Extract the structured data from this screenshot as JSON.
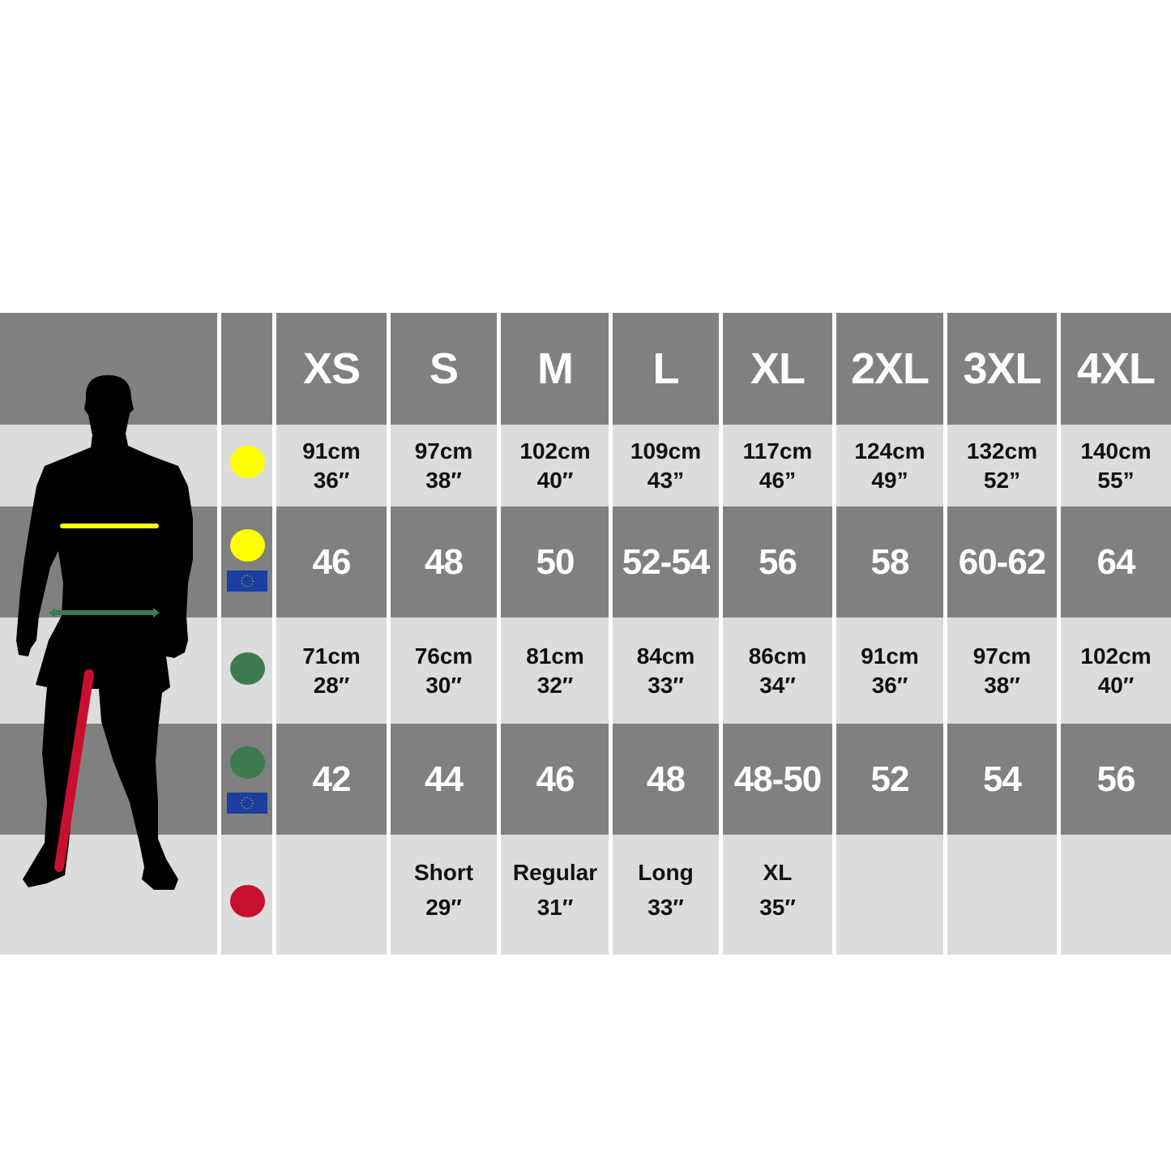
{
  "colors": {
    "chest": "#ffff00",
    "waist": "#3d7a50",
    "inseam": "#c8102e",
    "eu_flag": "#1a3fa0",
    "dark_row": "#808080",
    "light_row": "#dcdcdc"
  },
  "sizes": [
    "XS",
    "S",
    "M",
    "L",
    "XL",
    "2XL",
    "3XL",
    "4XL"
  ],
  "chest": [
    [
      "91cm",
      "36″"
    ],
    [
      "97cm",
      "38″"
    ],
    [
      "102cm",
      "40″"
    ],
    [
      "109cm",
      "43”"
    ],
    [
      "117cm",
      "46”"
    ],
    [
      "124cm",
      "49”"
    ],
    [
      "132cm",
      "52”"
    ],
    [
      "140cm",
      "55”"
    ]
  ],
  "chest_eu": [
    "46",
    "48",
    "50",
    "52-54",
    "56",
    "58",
    "60-62",
    "64"
  ],
  "waist": [
    [
      "71cm",
      "28″"
    ],
    [
      "76cm",
      "30″"
    ],
    [
      "81cm",
      "32″"
    ],
    [
      "84cm",
      "33″"
    ],
    [
      "86cm",
      "34″"
    ],
    [
      "91cm",
      "36″"
    ],
    [
      "97cm",
      "38″"
    ],
    [
      "102cm",
      "40″"
    ]
  ],
  "waist_eu": [
    "42",
    "44",
    "46",
    "48",
    "48-50",
    "52",
    "54",
    "56"
  ],
  "inseam": [
    [
      "",
      ""
    ],
    [
      "Short",
      "29″"
    ],
    [
      "Regular",
      "31″"
    ],
    [
      "Long",
      "33″"
    ],
    [
      "XL",
      "35″"
    ],
    [
      "",
      ""
    ],
    [
      "",
      ""
    ],
    [
      "",
      ""
    ]
  ],
  "icons": {
    "chest": "yellow-dot-icon",
    "waist": "green-dot-icon",
    "inseam": "red-dot-icon",
    "eu": "eu-flag-icon",
    "figure": "man-silhouette-icon"
  }
}
